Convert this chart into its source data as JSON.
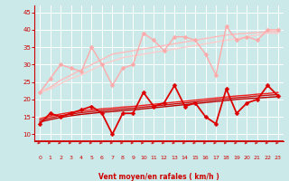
{
  "background_color": "#cce9e9",
  "grid_color": "#ffffff",
  "xlabel": "Vent moyen/en rafales ( km/h )",
  "xlabel_color": "#cc0000",
  "tick_color": "#cc0000",
  "arrow_color": "#cc2222",
  "x_ticks": [
    0,
    1,
    2,
    3,
    4,
    5,
    6,
    7,
    8,
    9,
    10,
    11,
    12,
    13,
    14,
    15,
    16,
    17,
    18,
    19,
    20,
    21,
    22,
    23
  ],
  "ylim": [
    8,
    47
  ],
  "yticks": [
    10,
    15,
    20,
    25,
    30,
    35,
    40,
    45
  ],
  "series": [
    {
      "color": "#ffaaaa",
      "lw": 1.0,
      "marker": "D",
      "ms": 2.5,
      "data": [
        22,
        26,
        30,
        29,
        28,
        35,
        30,
        24,
        29,
        30,
        39,
        37,
        34,
        38,
        38,
        37,
        33,
        27,
        41,
        37,
        38,
        37,
        40,
        40
      ]
    },
    {
      "color": "#ffbbbb",
      "lw": 1.0,
      "marker": null,
      "ms": 0,
      "data": [
        22,
        23.5,
        25.5,
        27,
        28.5,
        30,
        31.5,
        33,
        33.5,
        34,
        34.5,
        35,
        35.5,
        36,
        36.5,
        37,
        37.5,
        38,
        38.5,
        38.8,
        39,
        39.2,
        39.5,
        39.5
      ]
    },
    {
      "color": "#ffcccc",
      "lw": 1.0,
      "marker": null,
      "ms": 0,
      "data": [
        22,
        23,
        24.5,
        26,
        27,
        28.5,
        30,
        31,
        32,
        32.5,
        33,
        33.5,
        34,
        34.5,
        35,
        35.5,
        36,
        36.5,
        37,
        37.5,
        38,
        38.5,
        39,
        39
      ]
    },
    {
      "color": "#dd0000",
      "lw": 1.3,
      "marker": "D",
      "ms": 2.5,
      "data": [
        13,
        16,
        15,
        16,
        17,
        18,
        16,
        10,
        16,
        16,
        22,
        18,
        19,
        24,
        18,
        19,
        15,
        13,
        23,
        16,
        19,
        20,
        24,
        21
      ]
    },
    {
      "color": "#bb0000",
      "lw": 1.0,
      "marker": null,
      "ms": 0,
      "data": [
        13.5,
        14.2,
        14.8,
        15.3,
        15.7,
        16.0,
        16.3,
        16.5,
        16.8,
        17.0,
        17.3,
        17.6,
        17.9,
        18.2,
        18.5,
        18.8,
        19.1,
        19.4,
        19.7,
        20.0,
        20.2,
        20.4,
        20.6,
        20.8
      ]
    },
    {
      "color": "#cc1111",
      "lw": 1.0,
      "marker": null,
      "ms": 0,
      "data": [
        14.0,
        14.7,
        15.3,
        15.8,
        16.2,
        16.5,
        16.8,
        17.0,
        17.3,
        17.5,
        17.8,
        18.1,
        18.4,
        18.7,
        19.0,
        19.3,
        19.6,
        19.9,
        20.2,
        20.5,
        20.7,
        21.0,
        21.2,
        21.4
      ]
    },
    {
      "color": "#ee2222",
      "lw": 1.0,
      "marker": null,
      "ms": 0,
      "data": [
        14.5,
        15.2,
        15.8,
        16.3,
        16.7,
        17.0,
        17.3,
        17.5,
        17.8,
        18.0,
        18.3,
        18.6,
        18.9,
        19.2,
        19.5,
        19.8,
        20.1,
        20.4,
        20.7,
        21.0,
        21.2,
        21.5,
        21.7,
        22.0
      ]
    }
  ]
}
